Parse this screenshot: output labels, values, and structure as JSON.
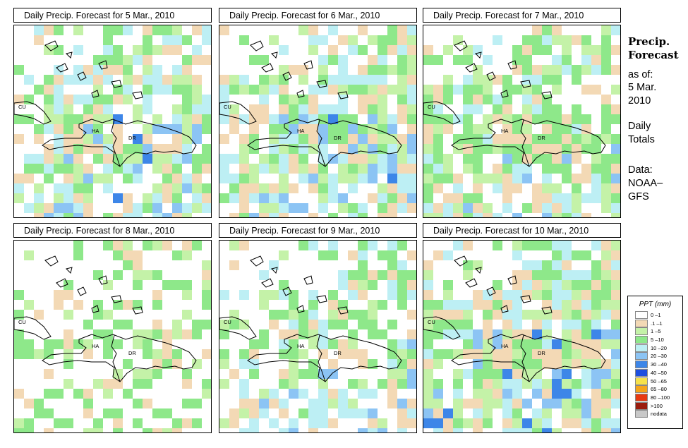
{
  "panels": [
    {
      "title": "Daily Precip. Forecast for  5 Mar., 2010",
      "seed": 11,
      "cover": 0.7,
      "blue": 0.12,
      "dark": 0.02,
      "south_blue": 0.1
    },
    {
      "title": "Daily Precip. Forecast for  6 Mar., 2010",
      "seed": 23,
      "cover": 0.72,
      "blue": 0.14,
      "dark": 0.03,
      "south_blue": 0.15
    },
    {
      "title": "Daily Precip. Forecast for  7 Mar., 2010",
      "seed": 37,
      "cover": 0.72,
      "blue": 0.06,
      "dark": 0.0,
      "south_blue": 0.15
    },
    {
      "title": "Daily Precip. Forecast for  8 Mar., 2010",
      "seed": 41,
      "cover": 0.45,
      "blue": 0.0,
      "dark": 0.0,
      "south_blue": 0.0
    },
    {
      "title": "Daily Precip. Forecast for  9 Mar., 2010",
      "seed": 53,
      "cover": 0.55,
      "blue": 0.08,
      "dark": 0.0,
      "south_blue": 0.35
    },
    {
      "title": "Daily Precip. Forecast for  10 Mar., 2010",
      "seed": 67,
      "cover": 0.8,
      "blue": 0.1,
      "dark": 0.04,
      "south_blue": 0.2
    }
  ],
  "map_labels": {
    "cuba": "CU",
    "haiti": "HA",
    "dominican_republic": "DR"
  },
  "side": {
    "title_line1": "Precip.",
    "title_line2": "Forecast",
    "asof": "as of:",
    "date_line1": "5 Mar.",
    "date_line2": "2010",
    "daily_line1": "Daily",
    "daily_line2": "Totals",
    "data_line1": "Data:",
    "data_line2": "NOAA–",
    "data_line3": "GFS"
  },
  "legend": {
    "title": "PPT (mm)",
    "items": [
      {
        "label": "0 –1",
        "color": "#ffffff"
      },
      {
        "label": ".1 –1",
        "color": "#f3d9b5"
      },
      {
        "label": "1 –5",
        "color": "#c4f2a8"
      },
      {
        "label": "5 –10",
        "color": "#8ee88a"
      },
      {
        "label": "10 –20",
        "color": "#bdeff4"
      },
      {
        "label": "20 –30",
        "color": "#8cc4f4"
      },
      {
        "label": "30 –40",
        "color": "#3d86e8"
      },
      {
        "label": "40 –50",
        "color": "#1e4fe0"
      },
      {
        "label": "50 –65",
        "color": "#f6e24a"
      },
      {
        "label": "65 –80",
        "color": "#f5a51a"
      },
      {
        "label": "80 –100",
        "color": "#e83a12"
      },
      {
        "label": ">100",
        "color": "#9a1c0e"
      },
      {
        "label": "nodata",
        "color": "#c8c8c8"
      }
    ]
  }
}
